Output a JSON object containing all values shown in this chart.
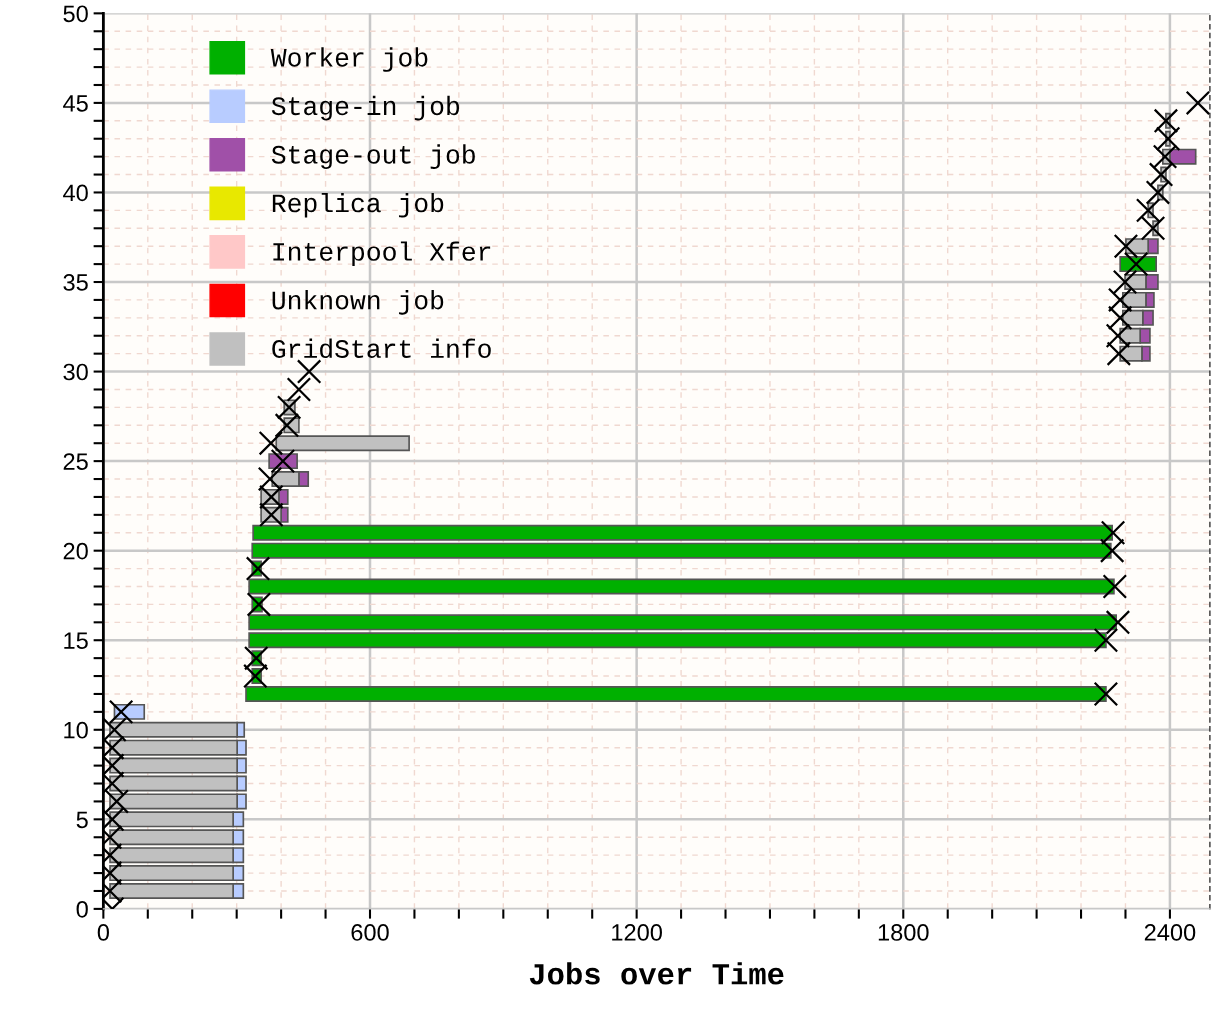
{
  "chart_data": {
    "type": "bar",
    "orientation": "horizontal",
    "xlabel": "Jobs over Time",
    "xlim": [
      0,
      2490
    ],
    "xticks": [
      0,
      {
        "value": 100,
        "label": null
      },
      {
        "value": 200,
        "label": null
      },
      {
        "value": 300,
        "label": null
      },
      {
        "value": 400,
        "label": null
      },
      {
        "value": 500,
        "label": null
      },
      600,
      {
        "value": 700,
        "label": null
      },
      {
        "value": 800,
        "label": null
      },
      {
        "value": 900,
        "label": null
      },
      {
        "value": 1000,
        "label": null
      },
      {
        "value": 1100,
        "label": null
      },
      1200,
      {
        "value": 1300,
        "label": null
      },
      {
        "value": 1400,
        "label": null
      },
      {
        "value": 1500,
        "label": null
      },
      {
        "value": 1600,
        "label": null
      },
      {
        "value": 1700,
        "label": null
      },
      1800,
      {
        "value": 1900,
        "label": null
      },
      {
        "value": 2000,
        "label": null
      },
      {
        "value": 2100,
        "label": null
      },
      {
        "value": 2200,
        "label": null
      },
      {
        "value": 2300,
        "label": null
      },
      2400
    ],
    "ylim": [
      0,
      50
    ],
    "yticks": [
      0,
      {
        "value": 1,
        "label": null
      },
      {
        "value": 2,
        "label": null
      },
      {
        "value": 3,
        "label": null
      },
      {
        "value": 4,
        "label": null
      },
      5,
      {
        "value": 6,
        "label": null
      },
      {
        "value": 7,
        "label": null
      },
      {
        "value": 8,
        "label": null
      },
      {
        "value": 9,
        "label": null
      },
      10,
      {
        "value": 11,
        "label": null
      },
      {
        "value": 12,
        "label": null
      },
      {
        "value": 13,
        "label": null
      },
      {
        "value": 14,
        "label": null
      },
      15,
      {
        "value": 16,
        "label": null
      },
      {
        "value": 17,
        "label": null
      },
      {
        "value": 18,
        "label": null
      },
      {
        "value": 19,
        "label": null
      },
      20,
      {
        "value": 21,
        "label": null
      },
      {
        "value": 22,
        "label": null
      },
      {
        "value": 23,
        "label": null
      },
      {
        "value": 24,
        "label": null
      },
      25,
      {
        "value": 26,
        "label": null
      },
      {
        "value": 27,
        "label": null
      },
      {
        "value": 28,
        "label": null
      },
      {
        "value": 29,
        "label": null
      },
      30,
      {
        "value": 31,
        "label": null
      },
      {
        "value": 32,
        "label": null
      },
      {
        "value": 33,
        "label": null
      },
      {
        "value": 34,
        "label": null
      },
      35,
      {
        "value": 36,
        "label": null
      },
      {
        "value": 37,
        "label": null
      },
      {
        "value": 38,
        "label": null
      },
      {
        "value": 39,
        "label": null
      },
      40,
      {
        "value": 41,
        "label": null
      },
      {
        "value": 42,
        "label": null
      },
      {
        "value": 43,
        "label": null
      },
      {
        "value": 44,
        "label": null
      },
      45,
      {
        "value": 46,
        "label": null
      },
      {
        "value": 47,
        "label": null
      },
      {
        "value": 48,
        "label": null
      },
      {
        "value": 49,
        "label": null
      },
      50
    ],
    "grid": true,
    "legend": "top left",
    "series": [
      {
        "name": "Worker job",
        "color": "#00b000",
        "x": [
          12,
          13,
          14,
          15,
          16,
          17,
          18,
          19,
          20,
          21,
          36
        ],
        "base": [
          321,
          335,
          335,
          328,
          328,
          335,
          328,
          335,
          335,
          337,
          2288
        ],
        "values": [
          1935,
          20,
          20,
          1928,
          1951,
          22,
          1946,
          20,
          1932,
          1933,
          81
        ]
      },
      {
        "name": "Stage-in job",
        "color": "#b8ccff",
        "x": [
          1,
          2,
          3,
          4,
          5,
          6,
          7,
          8,
          9,
          10,
          11
        ],
        "base": [
          292,
          292,
          292,
          292,
          292,
          301,
          301,
          301,
          301,
          301,
          25
        ],
        "values": [
          23,
          23,
          23,
          23,
          23,
          20,
          20,
          20,
          20,
          16,
          67
        ]
      },
      {
        "name": "Stage-out job",
        "color": "#a050a8",
        "x": [
          22,
          23,
          24,
          25,
          31,
          32,
          33,
          34,
          35,
          37,
          42
        ],
        "base": [
          400,
          395,
          440,
          373,
          2337,
          2333,
          2339,
          2346,
          2346,
          2351,
          2400
        ],
        "values": [
          15,
          20,
          21,
          63,
          18,
          22,
          23,
          18,
          27,
          22,
          58
        ]
      },
      {
        "name": "Replica job",
        "color": "#e8e800"
      },
      {
        "name": "Interpool Xfer",
        "color": "#ffc8c8"
      },
      {
        "name": "Unknown job",
        "color": "#ff0000"
      },
      {
        "name": "GridStart info",
        "color": "#c0c0c0",
        "x": [
          1,
          2,
          3,
          4,
          5,
          6,
          7,
          8,
          9,
          10,
          22,
          23,
          24,
          26,
          27,
          28,
          31,
          32,
          33,
          34,
          35,
          37,
          38,
          39,
          40,
          41,
          42,
          43,
          44
        ],
        "base": [
          15,
          15,
          15,
          15,
          15,
          15,
          15,
          15,
          15,
          15,
          355,
          355,
          380,
          389,
          407,
          407,
          2288,
          2288,
          2294,
          2294,
          2299,
          2301,
          2362,
          2351,
          2373,
          2380,
          2384,
          2391,
          2391
        ],
        "values": [
          277,
          277,
          277,
          277,
          277,
          286,
          286,
          286,
          286,
          286,
          45,
          40,
          60,
          299,
          33,
          24,
          49,
          45,
          45,
          52,
          47,
          50,
          11,
          11,
          11,
          11,
          16,
          9,
          9
        ]
      },
      {
        "type": "scatter",
        "marker": "cross",
        "color": "#000000",
        "x": [
          0,
          1,
          2,
          3,
          4,
          5,
          6,
          7,
          8,
          9,
          10,
          11,
          12,
          13,
          14,
          15,
          16,
          17,
          18,
          19,
          20,
          21,
          22,
          23,
          24,
          25,
          26,
          27,
          28,
          29,
          30,
          31,
          32,
          33,
          34,
          35,
          36,
          37,
          38,
          39,
          40,
          41,
          42,
          43,
          44,
          45
        ],
        "values": [
          20,
          15,
          15,
          15,
          15,
          20,
          30,
          20,
          20,
          20,
          25,
          40,
          2256,
          342,
          344,
          2256,
          2283,
          350,
          2276,
          348,
          2270,
          2272,
          378,
          378,
          375,
          404,
          377,
          413,
          418,
          440,
          463,
          2285,
          2283,
          2288,
          2288,
          2299,
          2324,
          2301,
          2362,
          2351,
          2373,
          2380,
          2389,
          2396,
          2391,
          2463
        ]
      }
    ]
  }
}
